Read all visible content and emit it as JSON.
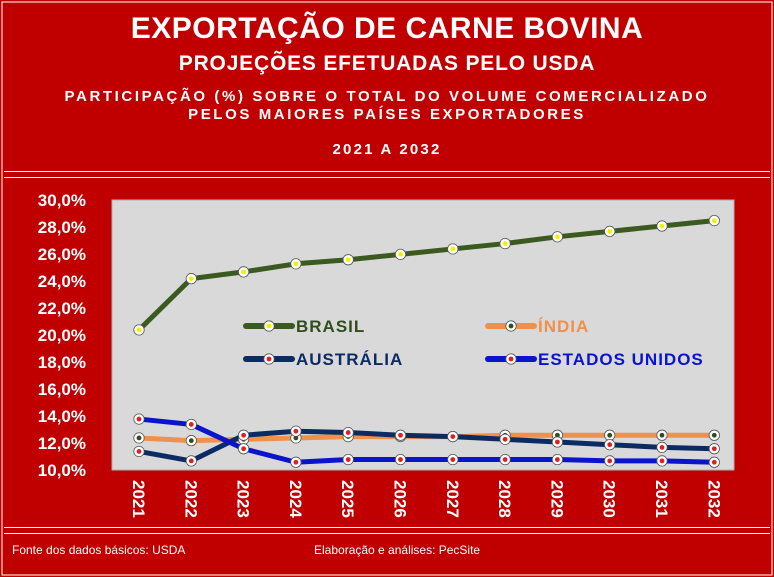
{
  "header": {
    "title": "EXPORTAÇÃO DE CARNE BOVINA",
    "subtitle": "PROJEÇÕES EFETUADAS PELO USDA",
    "description_line1": "PARTICIPAÇÃO (%) SOBRE O TOTAL DO VOLUME COMERCIALIZADO",
    "description_line2": "PELOS MAIORES PAÍSES EXPORTADORES",
    "period": "2021 A 2032"
  },
  "footer": {
    "source": "Fonte dos dados básicos: USDA",
    "author": "Elaboração e análises: PecSite"
  },
  "colors": {
    "background": "#c00000",
    "plot_area": "#d9d9d9",
    "text": "#ffffff"
  },
  "chart_data": {
    "type": "line",
    "title": "",
    "xlabel": "",
    "ylabel": "",
    "ylim": [
      10,
      30
    ],
    "y_tick_labels": [
      "10,0%",
      "12,0%",
      "14,0%",
      "16,0%",
      "18,0%",
      "20,0%",
      "22,0%",
      "24,0%",
      "26,0%",
      "28,0%",
      "30,0%"
    ],
    "y_ticks": [
      10,
      12,
      14,
      16,
      18,
      20,
      22,
      24,
      26,
      28,
      30
    ],
    "categories": [
      "2021",
      "2022",
      "2023",
      "2024",
      "2025",
      "2026",
      "2027",
      "2028",
      "2029",
      "2030",
      "2031",
      "2032"
    ],
    "grid": false,
    "legend_position": "center (inside plot)",
    "series": [
      {
        "name": "BRASIL",
        "color": "#3a5a1f",
        "marker": "#f2f200",
        "values": [
          20.3,
          24.1,
          24.6,
          25.2,
          25.5,
          25.9,
          26.3,
          26.7,
          27.2,
          27.6,
          28.0,
          28.4
        ]
      },
      {
        "name": "ÍNDIA",
        "color": "#f0904a",
        "marker": "#2e4e1c",
        "values": [
          12.3,
          12.1,
          12.2,
          12.3,
          12.4,
          12.4,
          12.4,
          12.5,
          12.5,
          12.5,
          12.5,
          12.5
        ]
      },
      {
        "name": "AUSTRÁLIA",
        "color": "#0c2b63",
        "marker": "#e02020",
        "values": [
          11.3,
          10.6,
          12.5,
          12.8,
          12.7,
          12.5,
          12.4,
          12.2,
          12.0,
          11.8,
          11.6,
          11.5
        ]
      },
      {
        "name": "ESTADOS UNIDOS",
        "color": "#0a14cc",
        "marker": "#e02020",
        "values": [
          13.7,
          13.3,
          11.5,
          10.5,
          10.7,
          10.7,
          10.7,
          10.7,
          10.7,
          10.6,
          10.6,
          10.5
        ]
      }
    ]
  }
}
